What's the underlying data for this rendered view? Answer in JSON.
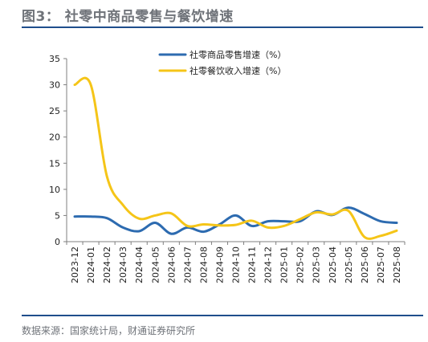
{
  "header": {
    "title": "图3：  社零中商品零售与餐饮增速"
  },
  "footer": {
    "source": "数据来源：国家统计局，财通证券研究所"
  },
  "colors": {
    "series_commodity": "#2d6bb0",
    "series_catering": "#f5c518",
    "rule": "#1f4e8c"
  },
  "chart_data": {
    "type": "line",
    "title": "",
    "xlabel": "",
    "ylabel": "",
    "ylim": [
      0,
      35
    ],
    "yticks": [
      0,
      5,
      10,
      15,
      20,
      25,
      30,
      35
    ],
    "grid": false,
    "legend_position": "top-center",
    "categories": [
      "2023-12",
      "2024-01",
      "2024-02",
      "2024-03",
      "2024-04",
      "2024-05",
      "2024-06",
      "2024-07",
      "2024-08",
      "2024-09",
      "2024-10",
      "2024-11",
      "2024-12",
      "2025-01",
      "2025-02",
      "2025-03",
      "2025-04",
      "2025-05",
      "2025-06",
      "2025-07",
      "2025-08"
    ],
    "series": [
      {
        "name": "社零商品零售增速（%）",
        "color": "#2d6bb0",
        "values": [
          4.8,
          4.8,
          4.5,
          2.7,
          2.0,
          3.6,
          1.5,
          2.7,
          1.9,
          3.3,
          5.0,
          3.0,
          3.9,
          3.9,
          3.9,
          5.8,
          5.1,
          6.5,
          5.3,
          3.9,
          3.6
        ]
      },
      {
        "name": "社零餐饮收入增速（%）",
        "color": "#f5c518",
        "values": [
          30.0,
          30.0,
          12.5,
          7.0,
          4.4,
          5.0,
          5.4,
          3.0,
          3.3,
          3.1,
          3.2,
          4.0,
          2.7,
          3.0,
          4.3,
          5.6,
          5.2,
          5.9,
          0.9,
          1.1,
          2.1
        ]
      }
    ]
  }
}
